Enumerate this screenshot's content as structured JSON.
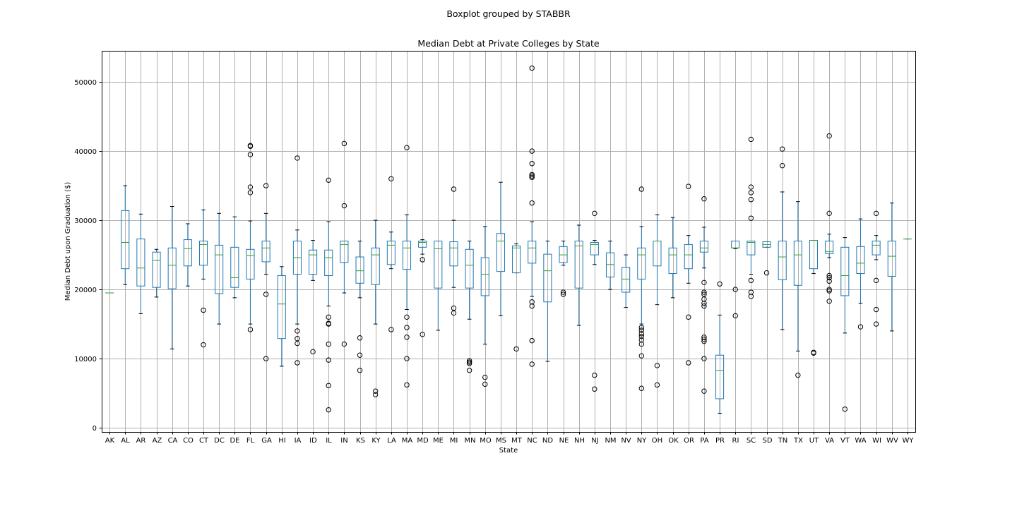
{
  "chart_data": {
    "type": "boxplot",
    "suptitle": "Boxplot grouped by STABBR",
    "title": "Median Debt at Private Colleges by State",
    "xlabel": "State",
    "ylabel": "Median Debt upon Graduation ($)",
    "ylim": [
      -600,
      54500
    ],
    "yticks": [
      0,
      10000,
      20000,
      30000,
      40000,
      50000
    ],
    "grid": true,
    "colors": {
      "box": "#1f77b4",
      "median": "#2ca02c",
      "grid": "#b0b0b0",
      "flier": "#000000"
    },
    "categories": [
      "AK",
      "AL",
      "AR",
      "AZ",
      "CA",
      "CO",
      "CT",
      "DC",
      "DE",
      "FL",
      "GA",
      "HI",
      "IA",
      "ID",
      "IL",
      "IN",
      "KS",
      "KY",
      "LA",
      "MA",
      "MD",
      "ME",
      "MI",
      "MN",
      "MO",
      "MS",
      "MT",
      "NC",
      "ND",
      "NE",
      "NH",
      "NJ",
      "NM",
      "NV",
      "NY",
      "OH",
      "OK",
      "OR",
      "PA",
      "PR",
      "RI",
      "SC",
      "SD",
      "TN",
      "TX",
      "UT",
      "VA",
      "VT",
      "WA",
      "WI",
      "WV",
      "WY"
    ],
    "boxes": [
      {
        "state": "AK",
        "whislo": 19500,
        "q1": 19500,
        "med": 19500,
        "q3": 19500,
        "whishi": 19500,
        "fliers": []
      },
      {
        "state": "AL",
        "whislo": 20700,
        "q1": 23000,
        "med": 26800,
        "q3": 31400,
        "whishi": 35000,
        "fliers": []
      },
      {
        "state": "AR",
        "whislo": 16500,
        "q1": 20500,
        "med": 23100,
        "q3": 27300,
        "whishi": 30900,
        "fliers": []
      },
      {
        "state": "AZ",
        "whislo": 18900,
        "q1": 20300,
        "med": 24200,
        "q3": 25400,
        "whishi": 25800,
        "fliers": []
      },
      {
        "state": "CA",
        "whislo": 11400,
        "q1": 20100,
        "med": 23500,
        "q3": 26000,
        "whishi": 32000,
        "fliers": []
      },
      {
        "state": "CO",
        "whislo": 20500,
        "q1": 23400,
        "med": 25900,
        "q3": 27200,
        "whishi": 29500,
        "fliers": []
      },
      {
        "state": "CT",
        "whislo": 21500,
        "q1": 23500,
        "med": 26500,
        "q3": 27000,
        "whishi": 31500,
        "fliers": [
          17000,
          12000
        ]
      },
      {
        "state": "DC",
        "whislo": 15000,
        "q1": 19400,
        "med": 25000,
        "q3": 26400,
        "whishi": 31000,
        "fliers": []
      },
      {
        "state": "DE",
        "whislo": 18800,
        "q1": 20300,
        "med": 21700,
        "q3": 26100,
        "whishi": 30500,
        "fliers": []
      },
      {
        "state": "FL",
        "whislo": 15000,
        "q1": 21500,
        "med": 24900,
        "q3": 25800,
        "whishi": 29900,
        "fliers": [
          40800,
          40700,
          39500,
          34800,
          34000,
          14200
        ]
      },
      {
        "state": "GA",
        "whislo": 22200,
        "q1": 24000,
        "med": 26000,
        "q3": 27000,
        "whishi": 31000,
        "fliers": [
          35000,
          19300,
          10000
        ]
      },
      {
        "state": "HI",
        "whislo": 8900,
        "q1": 12900,
        "med": 17900,
        "q3": 22000,
        "whishi": 23300,
        "fliers": []
      },
      {
        "state": "IA",
        "whislo": 15000,
        "q1": 22200,
        "med": 24600,
        "q3": 27000,
        "whishi": 28600,
        "fliers": [
          39000,
          14000,
          12900,
          12200,
          9400
        ]
      },
      {
        "state": "ID",
        "whislo": 21300,
        "q1": 22200,
        "med": 25000,
        "q3": 25700,
        "whishi": 27100,
        "fliers": [
          11000
        ]
      },
      {
        "state": "IL",
        "whislo": 17600,
        "q1": 22000,
        "med": 24600,
        "q3": 25700,
        "whishi": 29800,
        "fliers": [
          35800,
          16000,
          15000,
          15100,
          12100,
          9800,
          6100,
          2600
        ]
      },
      {
        "state": "IN",
        "whislo": 19500,
        "q1": 23900,
        "med": 26500,
        "q3": 27000,
        "whishi": 27000,
        "fliers": [
          41100,
          32100,
          12100
        ]
      },
      {
        "state": "KS",
        "whislo": 18800,
        "q1": 20900,
        "med": 22700,
        "q3": 24700,
        "whishi": 27000,
        "fliers": [
          13000,
          10500,
          8300
        ]
      },
      {
        "state": "KY",
        "whislo": 15000,
        "q1": 20700,
        "med": 25000,
        "q3": 26000,
        "whishi": 30000,
        "fliers": [
          5300,
          4800
        ]
      },
      {
        "state": "LA",
        "whislo": 23000,
        "q1": 23600,
        "med": 26400,
        "q3": 27000,
        "whishi": 28300,
        "fliers": [
          36000,
          14200
        ]
      },
      {
        "state": "MA",
        "whislo": 17100,
        "q1": 22900,
        "med": 26000,
        "q3": 27000,
        "whishi": 30800,
        "fliers": [
          40500,
          16000,
          14500,
          13100,
          10000,
          6200
        ]
      },
      {
        "state": "MD",
        "whislo": 25100,
        "q1": 26100,
        "med": 26800,
        "q3": 27000,
        "whishi": 27200,
        "fliers": [
          24300,
          13500
        ]
      },
      {
        "state": "ME",
        "whislo": 14100,
        "q1": 20200,
        "med": 25900,
        "q3": 27000,
        "whishi": 27000,
        "fliers": []
      },
      {
        "state": "MI",
        "whislo": 20300,
        "q1": 23400,
        "med": 26000,
        "q3": 26900,
        "whishi": 30000,
        "fliers": [
          34500,
          17300,
          16600
        ]
      },
      {
        "state": "MN",
        "whislo": 15700,
        "q1": 20200,
        "med": 23500,
        "q3": 25800,
        "whishi": 27000,
        "fliers": [
          9700,
          9500,
          9300,
          8300
        ]
      },
      {
        "state": "MO",
        "whislo": 12100,
        "q1": 19100,
        "med": 22200,
        "q3": 24600,
        "whishi": 29100,
        "fliers": [
          7300,
          6300
        ]
      },
      {
        "state": "MS",
        "whislo": 16200,
        "q1": 22600,
        "med": 27000,
        "q3": 28100,
        "whishi": 35500,
        "fliers": []
      },
      {
        "state": "MT",
        "whislo": 22400,
        "q1": 22400,
        "med": 26000,
        "q3": 26300,
        "whishi": 26600,
        "fliers": [
          11400
        ]
      },
      {
        "state": "NC",
        "whislo": 19000,
        "q1": 23800,
        "med": 26000,
        "q3": 27000,
        "whishi": 29800,
        "fliers": [
          52000,
          40000,
          38200,
          36600,
          36400,
          36200,
          32500,
          18200,
          17600,
          12600,
          9200
        ]
      },
      {
        "state": "ND",
        "whislo": 9600,
        "q1": 18200,
        "med": 22700,
        "q3": 25100,
        "whishi": 27000,
        "fliers": []
      },
      {
        "state": "NE",
        "whislo": 23500,
        "q1": 23900,
        "med": 25000,
        "q3": 26200,
        "whishi": 27000,
        "fliers": [
          19600,
          19300
        ]
      },
      {
        "state": "NH",
        "whislo": 14800,
        "q1": 20200,
        "med": 26300,
        "q3": 27000,
        "whishi": 29300,
        "fliers": []
      },
      {
        "state": "NJ",
        "whislo": 23600,
        "q1": 25000,
        "med": 26500,
        "q3": 26800,
        "whishi": 27100,
        "fliers": [
          31000,
          7600,
          5600
        ]
      },
      {
        "state": "NM",
        "whislo": 20000,
        "q1": 21800,
        "med": 23600,
        "q3": 25300,
        "whishi": 27000,
        "fliers": []
      },
      {
        "state": "NV",
        "whislo": 17400,
        "q1": 19600,
        "med": 21500,
        "q3": 23200,
        "whishi": 25000,
        "fliers": []
      },
      {
        "state": "NY",
        "whislo": 15000,
        "q1": 21500,
        "med": 25000,
        "q3": 26000,
        "whishi": 29100,
        "fliers": [
          34500,
          14500,
          14100,
          13600,
          13200,
          12700,
          12100,
          10400,
          5700
        ]
      },
      {
        "state": "OH",
        "whislo": 17800,
        "q1": 23400,
        "med": 27000,
        "q3": 27000,
        "whishi": 30800,
        "fliers": [
          9000,
          6200
        ]
      },
      {
        "state": "OK",
        "whislo": 18800,
        "q1": 22300,
        "med": 25000,
        "q3": 26000,
        "whishi": 30400,
        "fliers": []
      },
      {
        "state": "OR",
        "whislo": 20900,
        "q1": 23000,
        "med": 25000,
        "q3": 26500,
        "whishi": 27800,
        "fliers": [
          34900,
          16000,
          9400
        ]
      },
      {
        "state": "PA",
        "whislo": 23100,
        "q1": 25400,
        "med": 26000,
        "q3": 27000,
        "whishi": 29000,
        "fliers": [
          33100,
          21000,
          19600,
          19300,
          18600,
          18000,
          17600,
          13100,
          12800,
          12500,
          10000,
          5300
        ]
      },
      {
        "state": "PR",
        "whislo": 2100,
        "q1": 4200,
        "med": 8300,
        "q3": 10500,
        "whishi": 16300,
        "fliers": [
          20800
        ]
      },
      {
        "state": "RI",
        "whislo": 25900,
        "q1": 26000,
        "med": 26000,
        "q3": 27000,
        "whishi": 27000,
        "fliers": [
          20000,
          16200
        ]
      },
      {
        "state": "SC",
        "whislo": 22200,
        "q1": 25000,
        "med": 26800,
        "q3": 27000,
        "whishi": 27000,
        "fliers": [
          41700,
          34800,
          34000,
          33000,
          30300,
          21300,
          19600,
          19000
        ]
      },
      {
        "state": "SD",
        "whislo": 26100,
        "q1": 26100,
        "med": 26500,
        "q3": 26900,
        "whishi": 26900,
        "fliers": [
          22400
        ]
      },
      {
        "state": "TN",
        "whislo": 14200,
        "q1": 21400,
        "med": 24700,
        "q3": 27000,
        "whishi": 34100,
        "fliers": [
          40300,
          37900
        ]
      },
      {
        "state": "TX",
        "whislo": 11100,
        "q1": 20600,
        "med": 25000,
        "q3": 27000,
        "whishi": 32700,
        "fliers": [
          7600
        ]
      },
      {
        "state": "UT",
        "whislo": 22300,
        "q1": 23000,
        "med": 27100,
        "q3": 27100,
        "whishi": 27100,
        "fliers": [
          10900,
          10800
        ]
      },
      {
        "state": "VA",
        "whislo": 24600,
        "q1": 25200,
        "med": 25500,
        "q3": 27000,
        "whishi": 28000,
        "fliers": [
          42200,
          31000,
          22000,
          21700,
          21200,
          20000,
          19800,
          18300
        ]
      },
      {
        "state": "VT",
        "whislo": 13700,
        "q1": 19100,
        "med": 22000,
        "q3": 26100,
        "whishi": 27500,
        "fliers": [
          2700
        ]
      },
      {
        "state": "WA",
        "whislo": 18000,
        "q1": 22300,
        "med": 23800,
        "q3": 26200,
        "whishi": 30200,
        "fliers": [
          14600
        ]
      },
      {
        "state": "WI",
        "whislo": 24300,
        "q1": 25000,
        "med": 26400,
        "q3": 27000,
        "whishi": 27800,
        "fliers": [
          31000,
          21300,
          17100,
          15000
        ]
      },
      {
        "state": "WV",
        "whislo": 14000,
        "q1": 21900,
        "med": 24800,
        "q3": 27000,
        "whishi": 32500,
        "fliers": []
      },
      {
        "state": "WY",
        "whislo": 27300,
        "q1": 27300,
        "med": 27300,
        "q3": 27300,
        "whishi": 27300,
        "fliers": []
      }
    ]
  }
}
